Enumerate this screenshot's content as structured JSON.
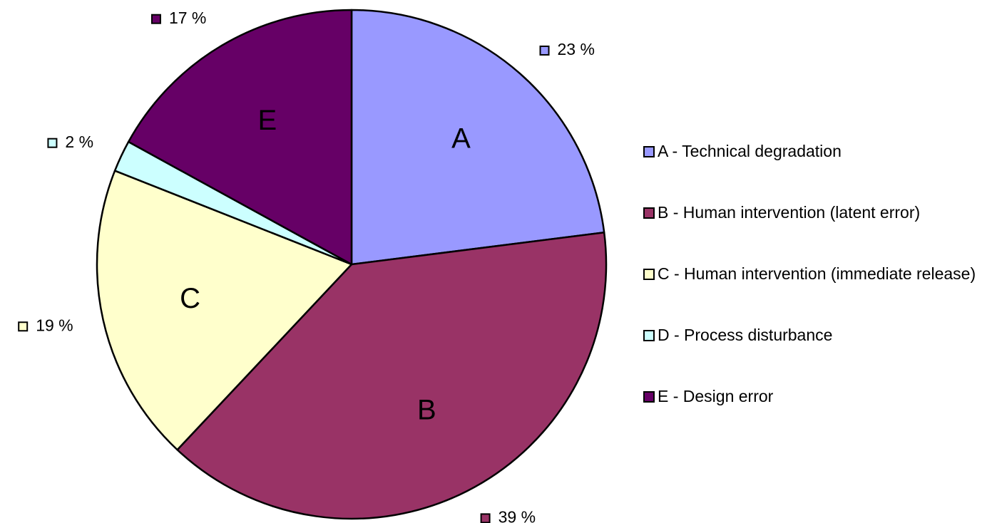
{
  "chart_data": {
    "type": "pie",
    "categories": [
      "A - Technical degradation",
      "B - Human intervention (latent error)",
      "C - Human intervention (immediate release)",
      "D - Process disturbance",
      "E - Design error"
    ],
    "slice_labels": [
      "A",
      "B",
      "C",
      null,
      "E"
    ],
    "values": [
      23,
      39,
      19,
      2,
      17
    ],
    "value_labels": [
      "23 %",
      "39 %",
      "19 %",
      "2 %",
      "17 %"
    ],
    "colors": [
      "#9999ff",
      "#993366",
      "#ffffcc",
      "#ccffff",
      "#660066"
    ],
    "legend": "right"
  }
}
